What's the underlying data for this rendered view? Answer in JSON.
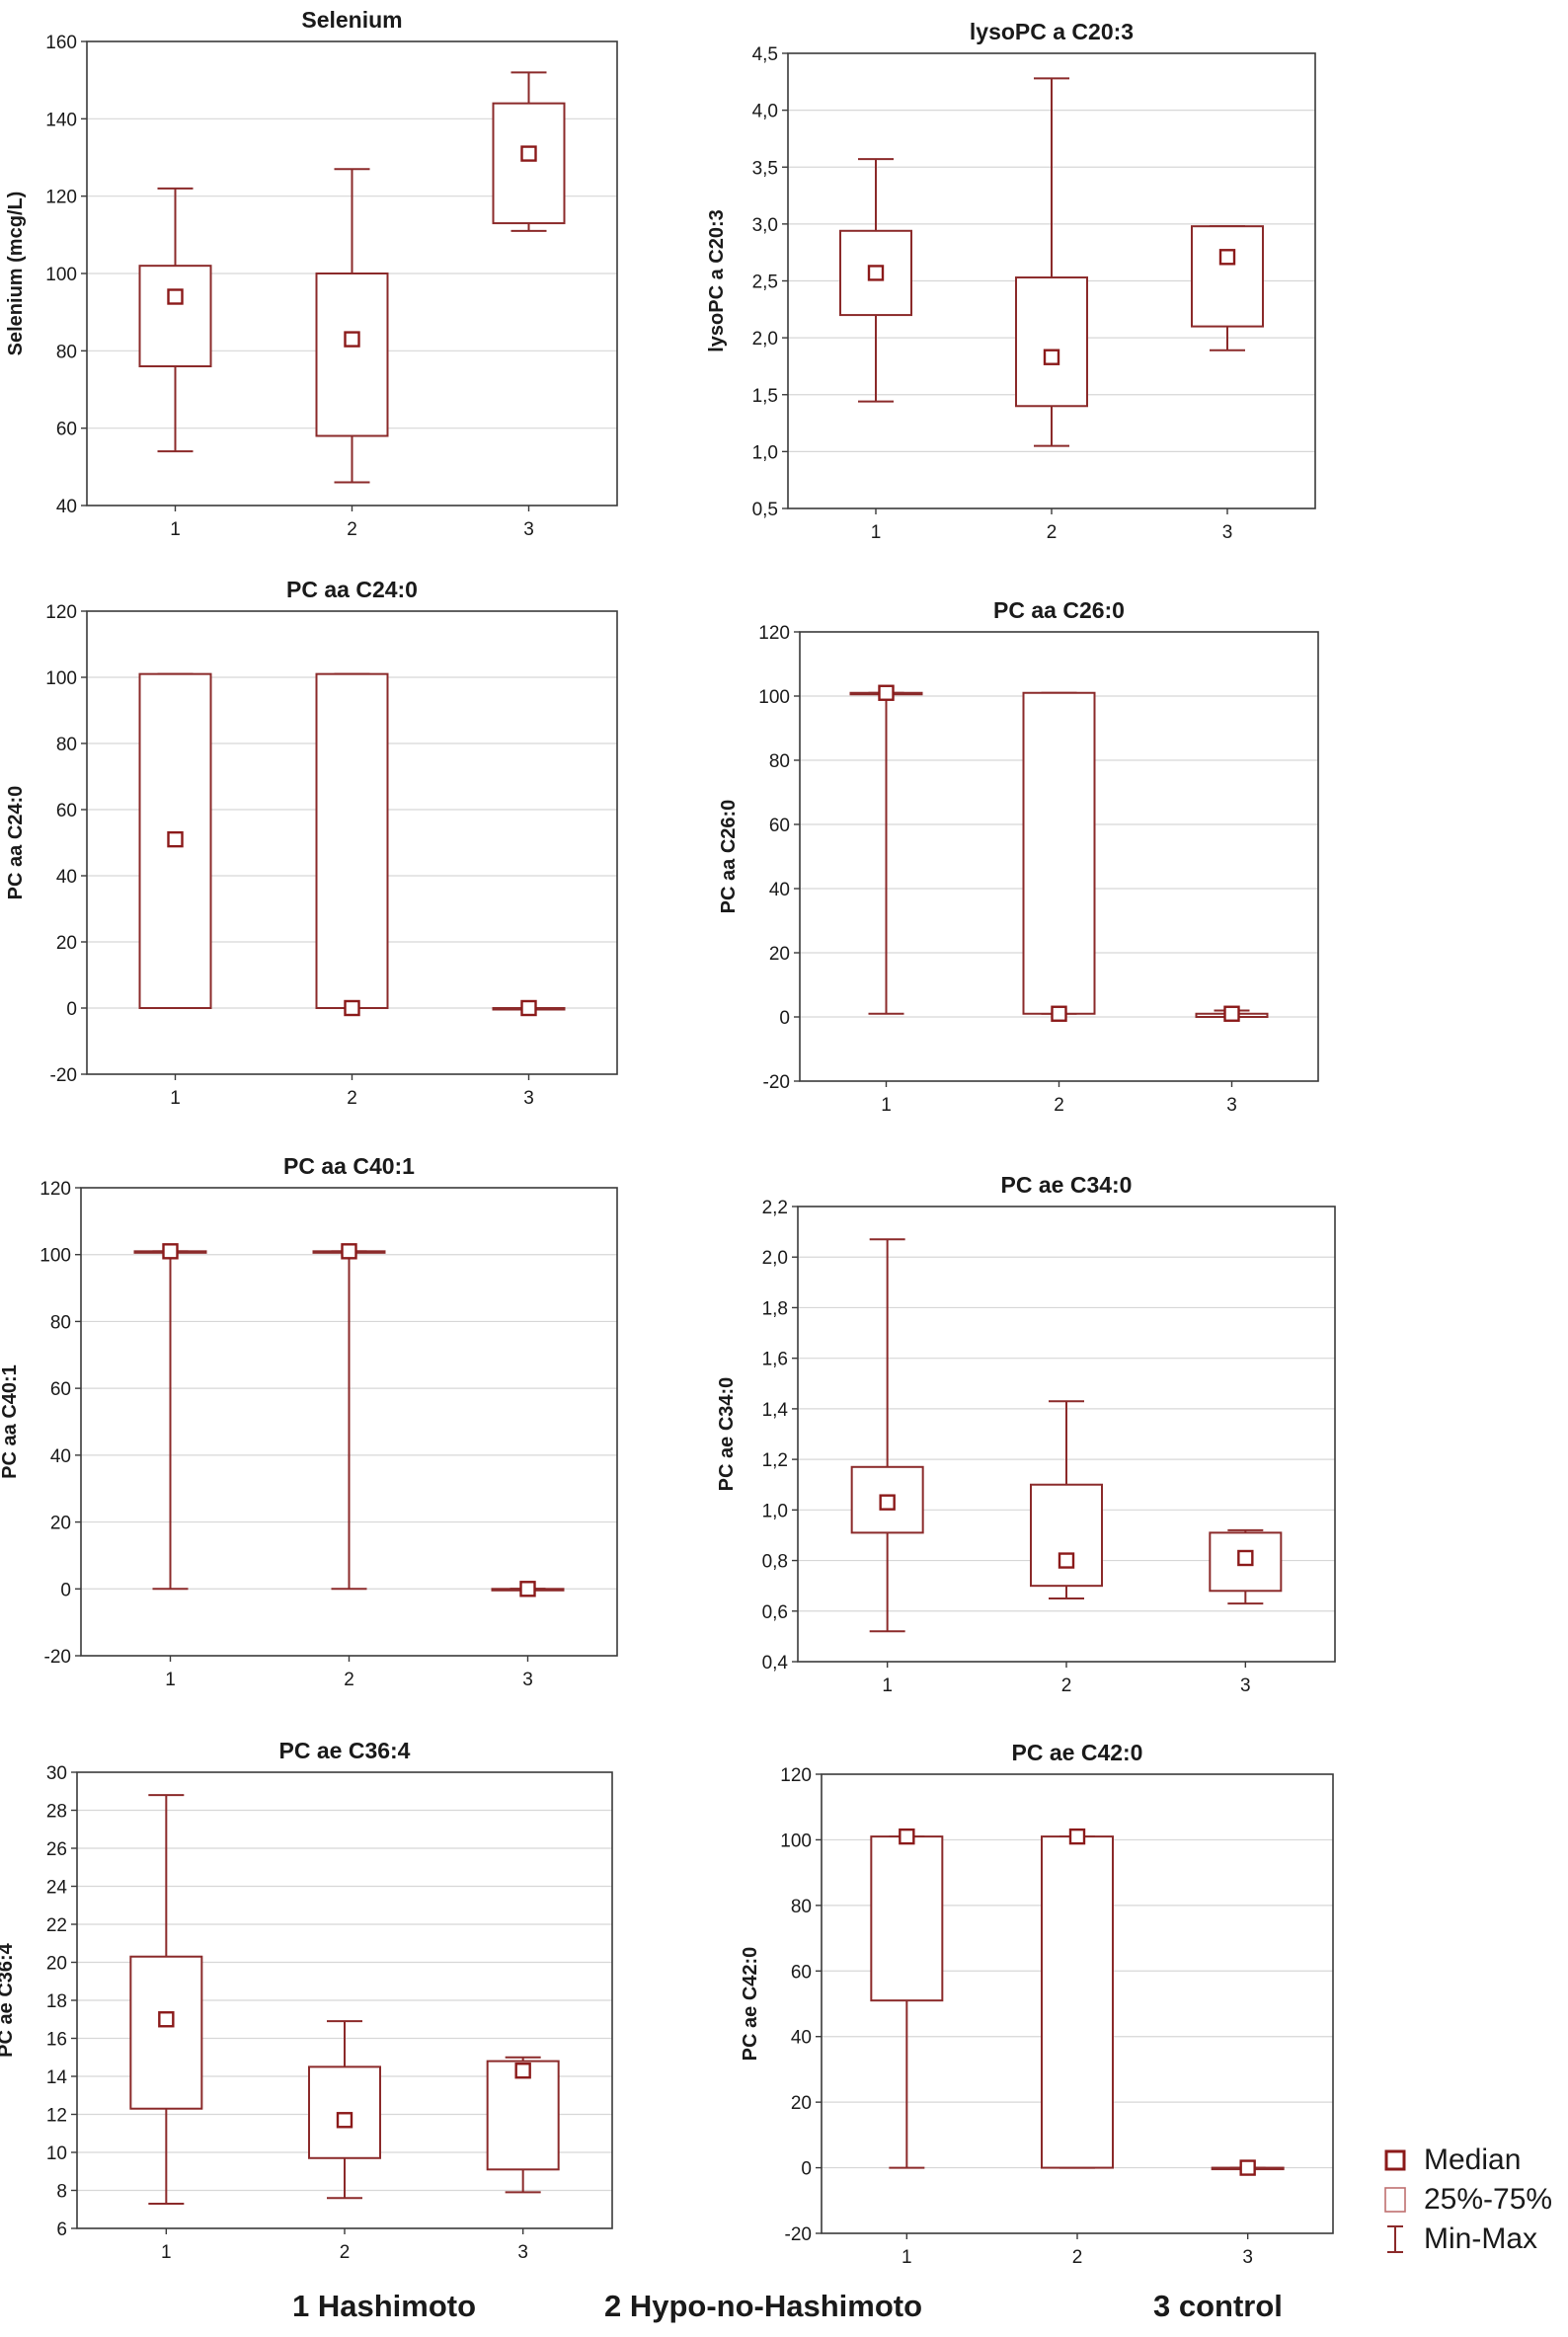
{
  "chart_data": [
    {
      "type": "boxplot",
      "title": "Selenium",
      "ylabel": "Selenium  (mcg/L)",
      "categories": [
        "1",
        "2",
        "3"
      ],
      "ylim": [
        40,
        160
      ],
      "yticks": [
        "40",
        "60",
        "80",
        "100",
        "120",
        "140",
        "160"
      ],
      "series": [
        {
          "category": "1",
          "min": 54,
          "q1": 76,
          "median": 94,
          "q3": 102,
          "max": 122
        },
        {
          "category": "2",
          "min": 46,
          "q1": 58,
          "median": 83,
          "q3": 100,
          "max": 127
        },
        {
          "category": "3",
          "min": 111,
          "q1": 113,
          "median": 131,
          "q3": 144,
          "max": 152
        }
      ]
    },
    {
      "type": "boxplot",
      "title": "lysoPC a C20:3",
      "ylabel": "lysoPC a C20:3",
      "categories": [
        "1",
        "2",
        "3"
      ],
      "ylim": [
        0.5,
        4.5
      ],
      "yticks": [
        "0,5",
        "1,0",
        "1,5",
        "2,0",
        "2,5",
        "3,0",
        "3,5",
        "4,0",
        "4,5"
      ],
      "series": [
        {
          "category": "1",
          "min": 1.44,
          "q1": 2.2,
          "median": 2.57,
          "q3": 2.94,
          "max": 3.57
        },
        {
          "category": "2",
          "min": 1.05,
          "q1": 1.4,
          "median": 1.83,
          "q3": 2.53,
          "max": 4.28
        },
        {
          "category": "3",
          "min": 1.89,
          "q1": 2.1,
          "median": 2.71,
          "q3": 2.98,
          "max": 2.98
        }
      ]
    },
    {
      "type": "boxplot",
      "title": "PC aa C24:0",
      "ylabel": "PC aa C24:0",
      "categories": [
        "1",
        "2",
        "3"
      ],
      "ylim": [
        -20,
        120
      ],
      "yticks": [
        "-20",
        "0",
        "20",
        "40",
        "60",
        "80",
        "100",
        "120"
      ],
      "series": [
        {
          "category": "1",
          "min": 0,
          "q1": 0,
          "median": 51,
          "q3": 101,
          "max": 101
        },
        {
          "category": "2",
          "min": 0,
          "q1": 0,
          "median": 0,
          "q3": 101,
          "max": 101
        },
        {
          "category": "3",
          "min": 0,
          "q1": 0,
          "median": 0,
          "q3": 0,
          "max": 0
        }
      ]
    },
    {
      "type": "boxplot",
      "title": "PC aa C26:0",
      "ylabel": "PC aa C26:0",
      "categories": [
        "1",
        "2",
        "3"
      ],
      "ylim": [
        -20,
        120
      ],
      "yticks": [
        "-20",
        "0",
        "20",
        "40",
        "60",
        "80",
        "100",
        "120"
      ],
      "series": [
        {
          "category": "1",
          "min": 1,
          "q1": 101,
          "median": 101,
          "q3": 101,
          "max": 101
        },
        {
          "category": "2",
          "min": 1,
          "q1": 1,
          "median": 1,
          "q3": 101,
          "max": 101
        },
        {
          "category": "3",
          "min": 0,
          "q1": 0,
          "median": 1,
          "q3": 1,
          "max": 2
        }
      ]
    },
    {
      "type": "boxplot",
      "title": "PC aa C40:1",
      "ylabel": "PC aa C40:1",
      "categories": [
        "1",
        "2",
        "3"
      ],
      "ylim": [
        -20,
        120
      ],
      "yticks": [
        "-20",
        "0",
        "20",
        "40",
        "60",
        "80",
        "100",
        "120"
      ],
      "series": [
        {
          "category": "1",
          "min": 0,
          "q1": 101,
          "median": 101,
          "q3": 101,
          "max": 101
        },
        {
          "category": "2",
          "min": 0,
          "q1": 101,
          "median": 101,
          "q3": 101,
          "max": 101
        },
        {
          "category": "3",
          "min": 0,
          "q1": 0,
          "median": 0,
          "q3": 0,
          "max": 0
        }
      ]
    },
    {
      "type": "boxplot",
      "title": "PC ae C34:0",
      "ylabel": "PC ae C34:0",
      "categories": [
        "1",
        "2",
        "3"
      ],
      "ylim": [
        0.4,
        2.2
      ],
      "yticks": [
        "0,4",
        "0,6",
        "0,8",
        "1,0",
        "1,2",
        "1,4",
        "1,6",
        "1,8",
        "2,0",
        "2,2"
      ],
      "series": [
        {
          "category": "1",
          "min": 0.52,
          "q1": 0.91,
          "median": 1.03,
          "q3": 1.17,
          "max": 2.07
        },
        {
          "category": "2",
          "min": 0.65,
          "q1": 0.7,
          "median": 0.8,
          "q3": 1.1,
          "max": 1.43
        },
        {
          "category": "3",
          "min": 0.63,
          "q1": 0.68,
          "median": 0.81,
          "q3": 0.91,
          "max": 0.92
        }
      ]
    },
    {
      "type": "boxplot",
      "title": "PC ae C36:4",
      "ylabel": "PC ae C36:4",
      "categories": [
        "1",
        "2",
        "3"
      ],
      "ylim": [
        6,
        30
      ],
      "yticks": [
        "6",
        "8",
        "10",
        "12",
        "14",
        "16",
        "18",
        "20",
        "22",
        "24",
        "26",
        "28",
        "30"
      ],
      "series": [
        {
          "category": "1",
          "min": 7.3,
          "q1": 12.3,
          "median": 17,
          "q3": 20.3,
          "max": 28.8
        },
        {
          "category": "2",
          "min": 7.6,
          "q1": 9.7,
          "median": 11.7,
          "q3": 14.5,
          "max": 16.9
        },
        {
          "category": "3",
          "min": 7.9,
          "q1": 9.1,
          "median": 14.3,
          "q3": 14.8,
          "max": 15.0
        }
      ]
    },
    {
      "type": "boxplot",
      "title": "PC ae C42:0",
      "ylabel": "PC ae C42:0",
      "categories": [
        "1",
        "2",
        "3"
      ],
      "ylim": [
        -20,
        120
      ],
      "yticks": [
        "-20",
        "0",
        "20",
        "40",
        "60",
        "80",
        "100",
        "120"
      ],
      "series": [
        {
          "category": "1",
          "min": 0,
          "q1": 51,
          "median": 101,
          "q3": 101,
          "max": 101
        },
        {
          "category": "2",
          "min": 0,
          "q1": 0,
          "median": 101,
          "q3": 101,
          "max": 101
        },
        {
          "category": "3",
          "min": 0,
          "q1": 0,
          "median": 0,
          "q3": 0,
          "max": 0
        }
      ]
    }
  ],
  "legend": {
    "median": "Median",
    "iqr": "25%-75%",
    "range": "Min-Max"
  },
  "groups": {
    "g1": "1 Hashimoto",
    "g2": "2  Hypo-no-Hashimoto",
    "g3": "3 control"
  },
  "colors": {
    "box": "#8b2a2a",
    "median": "#8b1a1a",
    "grid": "#d7d7d7"
  }
}
